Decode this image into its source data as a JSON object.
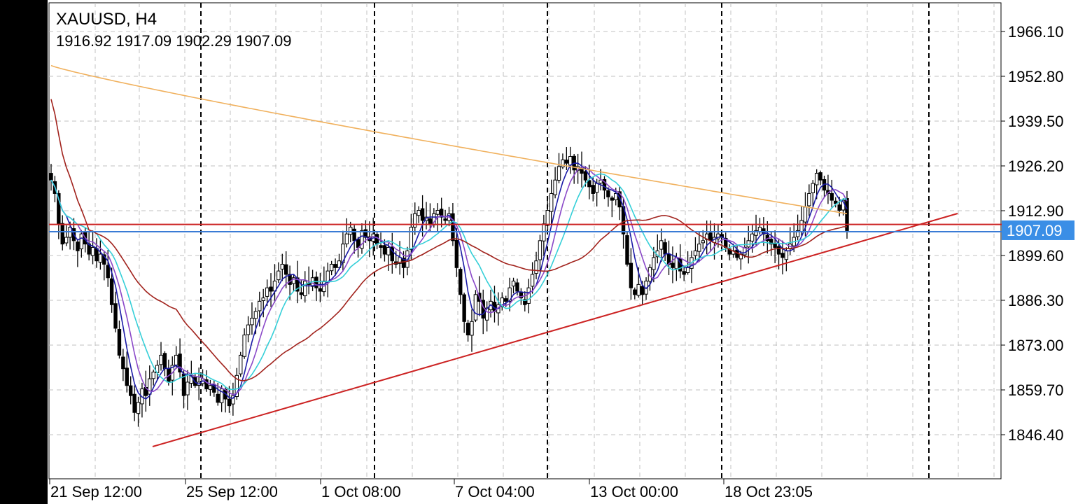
{
  "chart_data": {
    "type": "candlestick",
    "symbol": "XAUUSD",
    "timeframe": "H4",
    "title": "XAUUSD, H4",
    "ohlc_line": "1916.92 1917.09 1902.29 1907.09",
    "ohlc": {
      "open": 1916.92,
      "high": 1917.09,
      "low": 1902.29,
      "close": 1907.09
    },
    "current_price": 1907.09,
    "current_price_label": "1907.09",
    "y_ticks": [
      "1966.10",
      "1952.80",
      "1939.50",
      "1926.20",
      "1912.90",
      "1899.60",
      "1886.30",
      "1873.00",
      "1859.70",
      "1846.40"
    ],
    "ylim": [
      1835,
      1970
    ],
    "x_labels": [
      "21 Sep 12:00",
      "25 Sep 12:00",
      "1 Oct 08:00",
      "7 Oct 04:00",
      "13 Oct 00:00",
      "18 Oct 23:05"
    ],
    "grid": true,
    "close_series": [
      1922,
      1918,
      1909,
      1903,
      1905,
      1908,
      1904,
      1901,
      1906,
      1903,
      1900,
      1902,
      1898,
      1900,
      1897,
      1893,
      1885,
      1878,
      1870,
      1866,
      1861,
      1858,
      1853,
      1856,
      1860,
      1858,
      1863,
      1865,
      1867,
      1870,
      1866,
      1862,
      1867,
      1870,
      1865,
      1858,
      1862,
      1864,
      1861,
      1862,
      1863,
      1860,
      1861,
      1859,
      1856,
      1860,
      1857,
      1855,
      1858,
      1864,
      1870,
      1876,
      1879,
      1881,
      1883,
      1886,
      1887,
      1890,
      1889,
      1892,
      1895,
      1897,
      1894,
      1891,
      1893,
      1889,
      1888,
      1892,
      1891,
      1893,
      1890,
      1889,
      1892,
      1895,
      1897,
      1896,
      1898,
      1903,
      1906,
      1908,
      1904,
      1902,
      1907,
      1905,
      1904,
      1906,
      1903,
      1902,
      1900,
      1902,
      1898,
      1897,
      1899,
      1896,
      1901,
      1908,
      1912,
      1913,
      1910,
      1911,
      1909,
      1912,
      1913,
      1911,
      1910,
      1912,
      1904,
      1896,
      1888,
      1880,
      1876,
      1880,
      1888,
      1886,
      1881,
      1884,
      1886,
      1883,
      1885,
      1887,
      1886,
      1890,
      1892,
      1889,
      1887,
      1885,
      1890,
      1894,
      1898,
      1904,
      1909,
      1913,
      1918,
      1922,
      1926,
      1928,
      1927,
      1929,
      1925,
      1926,
      1924,
      1922,
      1920,
      1918,
      1921,
      1922,
      1919,
      1917,
      1916,
      1918,
      1914,
      1906,
      1897,
      1890,
      1888,
      1891,
      1888,
      1892,
      1896,
      1899,
      1901,
      1904,
      1900,
      1897,
      1896,
      1899,
      1895,
      1894,
      1896,
      1899,
      1901,
      1903,
      1904,
      1906,
      1904,
      1905,
      1906,
      1905,
      1902,
      1900,
      1901,
      1899,
      1900,
      1902,
      1904,
      1906,
      1907,
      1908,
      1906,
      1904,
      1903,
      1902,
      1900,
      1899,
      1901,
      1903,
      1905,
      1907,
      1910,
      1914,
      1918,
      1921,
      1924,
      1922,
      1919,
      1918,
      1916,
      1915,
      1913,
      1916,
      1907
    ],
    "indicators": [
      {
        "type": "MA",
        "period": 5,
        "color": "#1a1aa6"
      },
      {
        "type": "MA",
        "period": 8,
        "color": "#8a48c8"
      },
      {
        "type": "MA",
        "period": 13,
        "color": "#35cfd8"
      },
      {
        "type": "MA",
        "period": 34,
        "color": "#a1221c"
      },
      {
        "type": "MA",
        "period": 200,
        "color": "#f0b05c"
      }
    ],
    "horizontal_lines": [
      {
        "price": 1908.2,
        "color": "#cc2222"
      },
      {
        "price": 1907.09,
        "color": "#3a7bd5"
      }
    ],
    "trendline": {
      "from": {
        "time": "21 Sep 12:00",
        "price": 1844.5
      },
      "to": {
        "time": "after 18 Oct 23:05",
        "price": 1912.0
      },
      "color": "#cc2222"
    }
  },
  "colors": {
    "candle": "#000000",
    "grid": "#c0c0c0",
    "price_tag_bg": "#3a8ee6",
    "price_tag_text": "#ffffff"
  }
}
